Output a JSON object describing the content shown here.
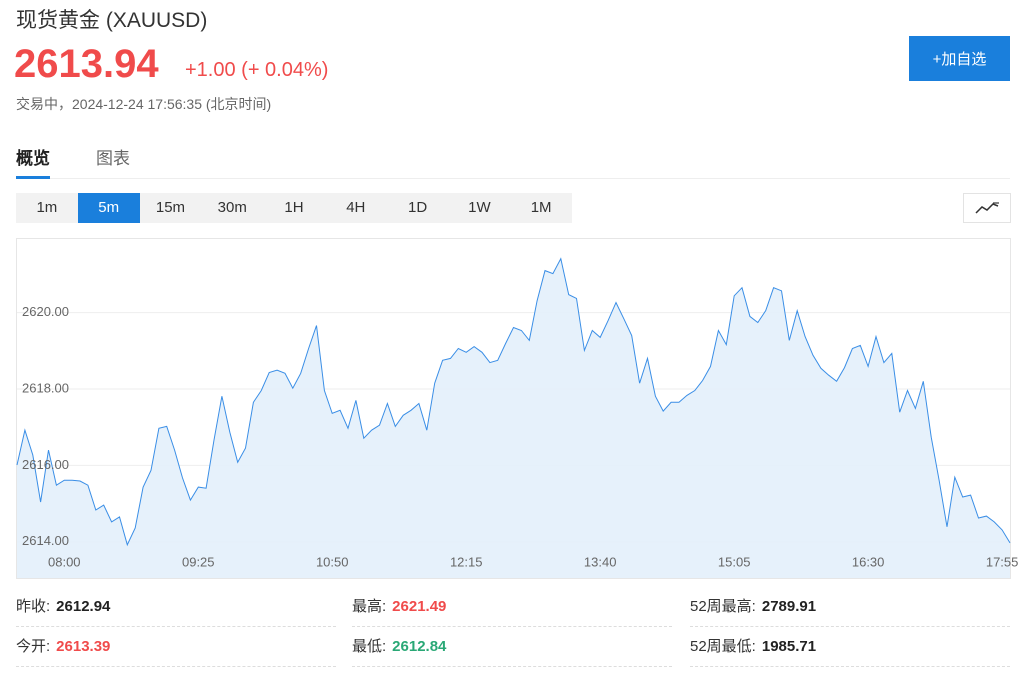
{
  "header": {
    "title": "现货黄金 (XAUUSD)",
    "price": 2613.94,
    "change": "+1.00 (+ 0.04%)",
    "status": "交易中，2024-12-24 17:56:35 (北京时间)",
    "add_button": "+加自选"
  },
  "tabs": [
    "概览",
    "图表"
  ],
  "active_tab": 0,
  "timeframes": [
    "1m",
    "5m",
    "15m",
    "30m",
    "1H",
    "4H",
    "1D",
    "1W",
    "1M"
  ],
  "active_timeframe": 1,
  "chart_data": {
    "type": "line",
    "color": "#3a8ee6",
    "area_color": "#e3effb",
    "grid": true,
    "xlim": [
      450,
      1080
    ],
    "ylim": [
      2613.05,
      2621.9
    ],
    "xticks": [
      {
        "value": 480,
        "label": "08:00"
      },
      {
        "value": 565,
        "label": "09:25"
      },
      {
        "value": 650,
        "label": "10:50"
      },
      {
        "value": 735,
        "label": "12:15"
      },
      {
        "value": 820,
        "label": "13:40"
      },
      {
        "value": 905,
        "label": "15:05"
      },
      {
        "value": 990,
        "label": "16:30"
      },
      {
        "value": 1075,
        "label": "17:55"
      }
    ],
    "yticks": [
      {
        "value": 2614,
        "label": "2614.00"
      },
      {
        "value": 2616,
        "label": "2616.00"
      },
      {
        "value": 2618,
        "label": "2618.00"
      },
      {
        "value": 2620,
        "label": "2620.00"
      }
    ],
    "x": [
      450,
      455,
      460,
      465,
      470,
      475,
      480,
      485,
      490,
      495,
      500,
      505,
      510,
      515,
      520,
      525,
      530,
      535,
      540,
      545,
      550,
      555,
      560,
      565,
      570,
      575,
      580,
      585,
      590,
      595,
      600,
      605,
      610,
      615,
      620,
      625,
      630,
      635,
      640,
      645,
      650,
      655,
      660,
      665,
      670,
      675,
      680,
      685,
      690,
      695,
      700,
      705,
      710,
      715,
      720,
      725,
      730,
      735,
      740,
      745,
      750,
      755,
      760,
      765,
      770,
      775,
      780,
      785,
      790,
      795,
      800,
      805,
      810,
      815,
      820,
      825,
      830,
      835,
      840,
      845,
      850,
      855,
      860,
      865,
      870,
      875,
      880,
      885,
      890,
      895,
      900,
      905,
      910,
      915,
      920,
      925,
      930,
      935,
      940,
      945,
      950,
      955,
      960,
      965,
      970,
      975,
      980,
      985,
      990,
      995,
      1000,
      1005,
      1010,
      1015,
      1020,
      1025,
      1030,
      1035,
      1040,
      1045,
      1050,
      1055,
      1060,
      1065,
      1070,
      1075,
      1080
    ],
    "values": [
      2616.01,
      2616.92,
      2616.27,
      2615.04,
      2616.4,
      2615.48,
      2615.61,
      2615.61,
      2615.59,
      2615.48,
      2614.83,
      2614.96,
      2614.52,
      2614.65,
      2613.92,
      2614.36,
      2615.43,
      2615.87,
      2616.97,
      2617.02,
      2616.4,
      2615.67,
      2615.09,
      2615.43,
      2615.4,
      2616.66,
      2617.81,
      2616.87,
      2616.08,
      2616.45,
      2617.65,
      2617.96,
      2618.43,
      2618.49,
      2618.41,
      2618.02,
      2618.41,
      2619.06,
      2619.66,
      2617.96,
      2617.36,
      2617.44,
      2616.97,
      2617.7,
      2616.71,
      2616.92,
      2617.05,
      2617.62,
      2617.02,
      2617.31,
      2617.44,
      2617.62,
      2616.92,
      2618.15,
      2618.75,
      2618.8,
      2619.06,
      2618.96,
      2619.11,
      2618.96,
      2618.69,
      2618.75,
      2619.19,
      2619.61,
      2619.53,
      2619.27,
      2620.31,
      2621.1,
      2621.02,
      2621.41,
      2620.47,
      2620.37,
      2619.01,
      2619.53,
      2619.35,
      2619.79,
      2620.26,
      2619.84,
      2619.4,
      2618.15,
      2618.8,
      2617.81,
      2617.42,
      2617.65,
      2617.65,
      2617.83,
      2617.96,
      2618.22,
      2618.59,
      2619.53,
      2619.16,
      2620.44,
      2620.65,
      2619.9,
      2619.74,
      2620.05,
      2620.65,
      2620.57,
      2619.27,
      2620.05,
      2619.37,
      2618.88,
      2618.54,
      2618.36,
      2618.2,
      2618.56,
      2619.06,
      2619.14,
      2618.59,
      2619.37,
      2618.69,
      2618.93,
      2617.39,
      2617.96,
      2617.49,
      2618.2,
      2616.74,
      2615.61,
      2614.39,
      2615.69,
      2615.17,
      2615.22,
      2614.62,
      2614.67,
      2614.52,
      2614.31,
      2613.97
    ]
  },
  "stats": [
    [
      {
        "label": "昨收:",
        "value": 2612.94,
        "color": "#222222"
      },
      {
        "label": "最高:",
        "value": 2621.49,
        "color": "#f04b4b"
      },
      {
        "label": "52周最高:",
        "value": 2789.91,
        "color": "#222222"
      }
    ],
    [
      {
        "label": "今开:",
        "value": 2613.39,
        "color": "#f04b4b"
      },
      {
        "label": "最低:",
        "value": 2612.84,
        "color": "#2aa876"
      },
      {
        "label": "52周最低:",
        "value": 1985.71,
        "color": "#222222"
      }
    ]
  ]
}
